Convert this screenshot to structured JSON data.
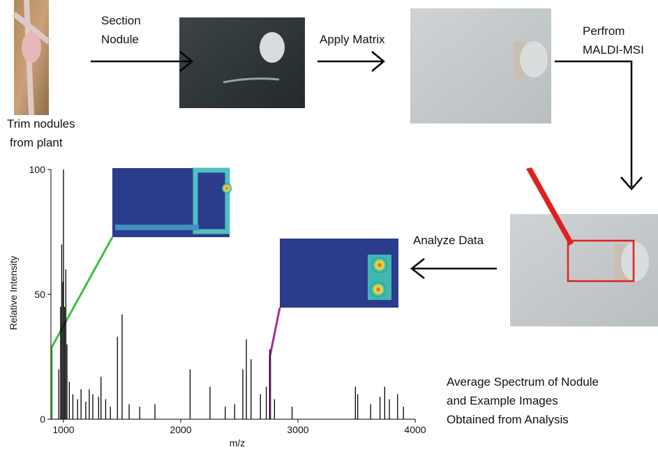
{
  "labels": {
    "trim": [
      "Trim nodules",
      "from plant"
    ],
    "section": [
      "Section",
      "Nodule"
    ],
    "apply": "Apply Matrix",
    "perform": [
      "Perfrom",
      "MALDI-MSI"
    ],
    "analyze": "Analyze Data",
    "caption": [
      "Average Spectrum of Nodule",
      "and Example Images",
      "Obtained from Analysis"
    ]
  },
  "spectrum": {
    "type": "bar",
    "x_label": "m/z",
    "y_label": "Relative Intensity",
    "xlim": [
      893,
      4000
    ],
    "ylim": [
      0,
      100
    ],
    "xticks": [
      1000,
      2000,
      3000,
      4000
    ],
    "yticks": [
      0,
      50,
      100
    ],
    "color": "#000000",
    "x": [
      960,
      975,
      985,
      995,
      1000,
      1010,
      1020,
      1030,
      1050,
      1080,
      1120,
      1150,
      1190,
      1220,
      1250,
      1300,
      1320,
      1360,
      1400,
      1460,
      1500,
      1560,
      1650,
      1780,
      2080,
      2250,
      2380,
      2460,
      2530,
      2560,
      2600,
      2680,
      2730,
      2760,
      2800,
      2950,
      3490,
      3510,
      3620,
      3700,
      3740,
      3780,
      3850,
      3900
    ],
    "values": [
      20,
      45,
      70,
      55,
      100,
      45,
      60,
      30,
      15,
      10,
      8,
      12,
      7,
      12,
      10,
      9,
      17,
      8,
      5,
      33,
      42,
      6,
      5,
      6,
      20,
      13,
      5,
      6,
      20,
      32,
      24,
      10,
      13,
      28,
      8,
      5,
      13,
      10,
      6,
      9,
      13,
      8,
      10,
      5
    ]
  }
}
